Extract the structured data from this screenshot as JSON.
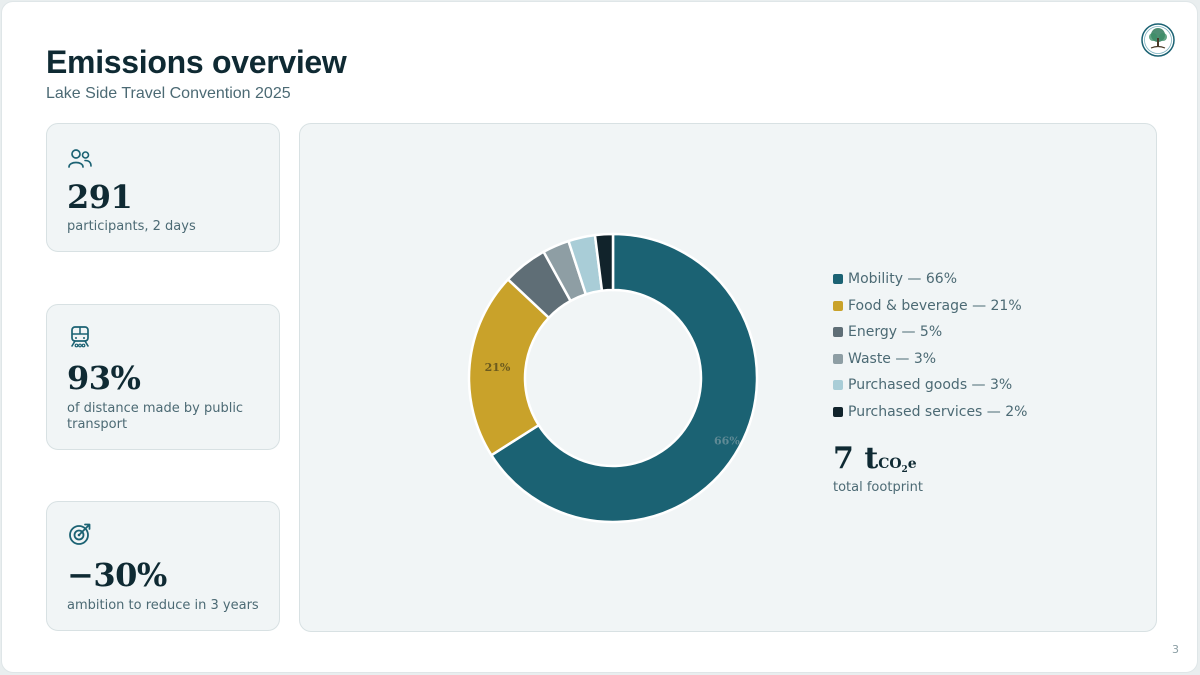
{
  "header": {
    "title": "Emissions overview",
    "subtitle": "Lake Side Travel Convention 2025"
  },
  "kpis": [
    {
      "icon": "participants-icon",
      "value": "291",
      "label": "participants, 2 days"
    },
    {
      "icon": "train-icon",
      "value": "93%",
      "label": "of distance made by public transport"
    },
    {
      "icon": "target-icon",
      "value": "−30%",
      "label": "ambition to reduce in 3 years"
    }
  ],
  "legend": [
    "Mobility — 66%",
    "Food & beverage — 21%",
    "Energy — 5%",
    "Waste — 3%",
    "Purchased goods — 3%",
    "Purchased services — 2%"
  ],
  "total": {
    "value": "7",
    "unit_t": "t",
    "unit_co": "CO",
    "unit_2": "2",
    "unit_e": "e",
    "label": "total footprint"
  },
  "page_number": "3",
  "colors": {
    "accent": "#1b6273",
    "mobility": "#1b6273",
    "food": "#c9a22a",
    "energy": "#5f6e76",
    "waste": "#8e9ea4",
    "goods": "#a9cdd7",
    "services": "#11232b"
  },
  "chart_data": {
    "type": "pie",
    "variant": "donut",
    "categories": [
      "Mobility",
      "Food & beverage",
      "Energy",
      "Waste",
      "Purchased goods",
      "Purchased services"
    ],
    "values": [
      66,
      21,
      5,
      3,
      3,
      2
    ],
    "unit": "%",
    "data_labels": [
      "66%",
      "21%",
      "",
      "",
      "",
      ""
    ],
    "colors": [
      "#1b6273",
      "#c9a22a",
      "#5f6e76",
      "#8e9ea4",
      "#a9cdd7",
      "#11232b"
    ],
    "legend_position": "right"
  }
}
